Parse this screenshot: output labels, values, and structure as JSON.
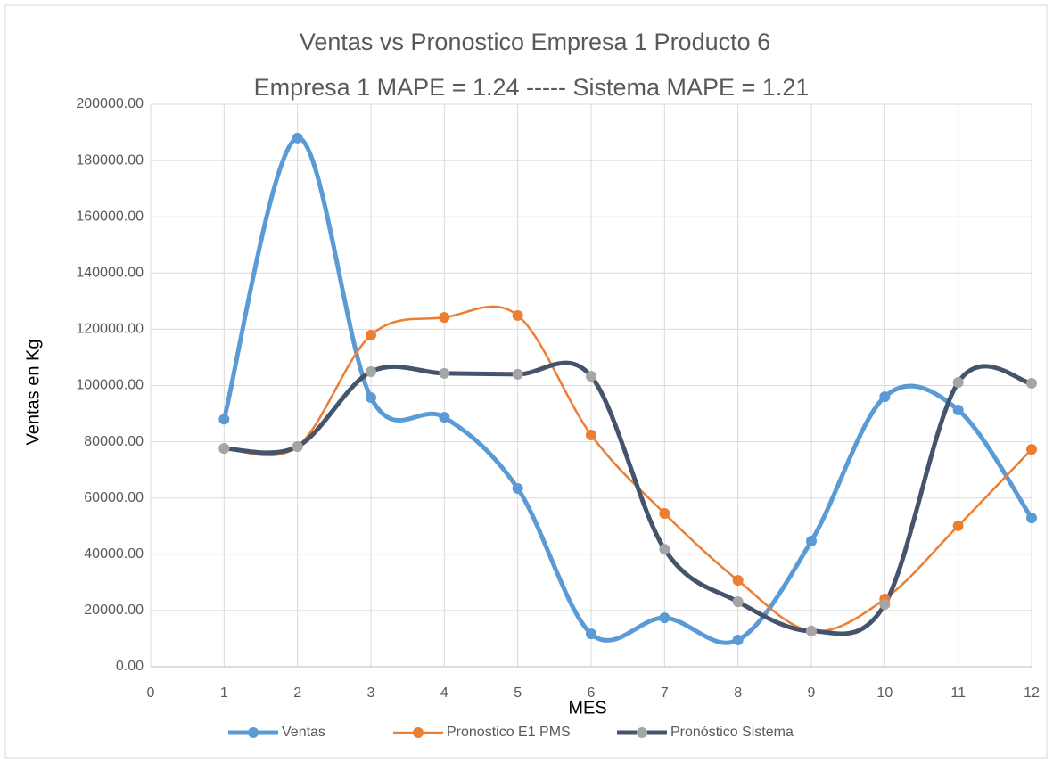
{
  "chart_data": {
    "type": "line",
    "title": "Ventas vs Pronostico Empresa 1 Producto 6",
    "subtitle": "Empresa 1 MAPE = 1.24 ----- Sistema MAPE = 1.21",
    "x_label": "MES",
    "y_label": "Ventas en Kg",
    "x": [
      1,
      2,
      3,
      4,
      5,
      6,
      7,
      8,
      9,
      10,
      11,
      12
    ],
    "series": [
      {
        "name": "Ventas",
        "color": "#5b9bd5",
        "marker_color": "#5b9bd5",
        "values": [
          88000,
          188000,
          95700,
          88700,
          63400,
          11700,
          17400,
          9500,
          44700,
          96000,
          91300,
          52900
        ]
      },
      {
        "name": "Pronostico E1 PMS",
        "color": "#ed7d31",
        "marker_color": "#ed7d31",
        "values": [
          77600,
          78300,
          117900,
          124200,
          124900,
          82400,
          54500,
          30700,
          12700,
          24100,
          50100,
          77300
        ]
      },
      {
        "name": "Pronóstico Sistema",
        "color": "#44546a",
        "marker_color": "#a5a5a5",
        "values": [
          77600,
          78300,
          104900,
          104300,
          104000,
          103300,
          41800,
          23100,
          12700,
          22200,
          101100,
          100800
        ]
      }
    ],
    "smooth": true,
    "xlim": [
      0,
      12
    ],
    "xticks": [
      0,
      1,
      2,
      3,
      4,
      5,
      6,
      7,
      8,
      9,
      10,
      11,
      12
    ],
    "ylim": [
      0,
      200000
    ],
    "yticks": [
      {
        "value": 0,
        "label": "0.00"
      },
      {
        "value": 20000,
        "label": "20000.00"
      },
      {
        "value": 40000,
        "label": "40000.00"
      },
      {
        "value": 60000,
        "label": "60000.00"
      },
      {
        "value": 80000,
        "label": "80000.00"
      },
      {
        "value": 100000,
        "label": "100000.00"
      },
      {
        "value": 120000,
        "label": "120000.00"
      },
      {
        "value": 140000,
        "label": "140000.00"
      },
      {
        "value": 160000,
        "label": "160000.00"
      },
      {
        "value": 180000,
        "label": "180000.00"
      },
      {
        "value": 200000,
        "label": "200000.00"
      }
    ],
    "grid": true,
    "legend": "bottom"
  }
}
